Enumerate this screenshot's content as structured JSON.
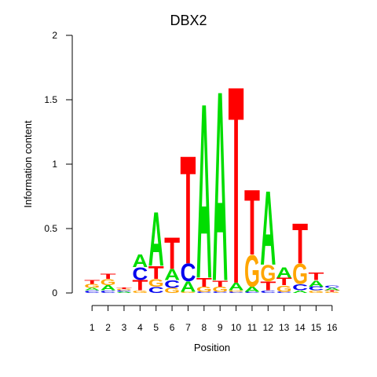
{
  "chart_data": {
    "type": "sequence-logo",
    "title": "DBX2",
    "xlabel": "Position",
    "ylabel": "Information content",
    "ylim": [
      0,
      2
    ],
    "y_ticks": [
      {
        "value": 0,
        "label": "0"
      },
      {
        "value": 0.5,
        "label": "0.5"
      },
      {
        "value": 1,
        "label": "1"
      },
      {
        "value": 1.5,
        "label": "1.5"
      },
      {
        "value": 2,
        "label": "2"
      }
    ],
    "x_ticks": [
      "1",
      "2",
      "3",
      "4",
      "5",
      "6",
      "7",
      "8",
      "9",
      "10",
      "11",
      "12",
      "13",
      "14",
      "15",
      "16"
    ],
    "base_colors": {
      "A": "#00dd00",
      "C": "#0000ee",
      "G": "#ffa500",
      "T": "#ff0000"
    },
    "positions": [
      {
        "pos": 1,
        "letters": [
          [
            "C",
            0.02
          ],
          [
            "A",
            0.02
          ],
          [
            "G",
            0.03
          ],
          [
            "T",
            0.03
          ]
        ]
      },
      {
        "pos": 2,
        "letters": [
          [
            "C",
            0.02
          ],
          [
            "A",
            0.04
          ],
          [
            "G",
            0.05
          ],
          [
            "T",
            0.04
          ]
        ]
      },
      {
        "pos": 3,
        "letters": [
          [
            "A",
            0.01
          ],
          [
            "C",
            0.01
          ],
          [
            "G",
            0.01
          ],
          [
            "T",
            0.01
          ]
        ]
      },
      {
        "pos": 4,
        "letters": [
          [
            "G",
            0.02
          ],
          [
            "T",
            0.08
          ],
          [
            "C",
            0.1
          ],
          [
            "A",
            0.1
          ]
        ]
      },
      {
        "pos": 5,
        "letters": [
          [
            "C",
            0.05
          ],
          [
            "G",
            0.06
          ],
          [
            "T",
            0.1
          ],
          [
            "A",
            0.43
          ]
        ]
      },
      {
        "pos": 6,
        "letters": [
          [
            "G",
            0.04
          ],
          [
            "C",
            0.06
          ],
          [
            "A",
            0.09
          ],
          [
            "T",
            0.25
          ]
        ]
      },
      {
        "pos": 7,
        "letters": [
          [
            "G",
            0.01
          ],
          [
            "A",
            0.08
          ],
          [
            "C",
            0.14
          ],
          [
            "T",
            0.86
          ]
        ]
      },
      {
        "pos": 8,
        "letters": [
          [
            "C",
            0.01
          ],
          [
            "G",
            0.04
          ],
          [
            "T",
            0.07
          ],
          [
            "A",
            1.39
          ]
        ]
      },
      {
        "pos": 9,
        "letters": [
          [
            "C",
            0.01
          ],
          [
            "G",
            0.04
          ],
          [
            "T",
            0.05
          ],
          [
            "A",
            1.51
          ]
        ]
      },
      {
        "pos": 10,
        "letters": [
          [
            "C",
            0.01
          ],
          [
            "G",
            0.01
          ],
          [
            "A",
            0.06
          ],
          [
            "T",
            1.57
          ]
        ]
      },
      {
        "pos": 11,
        "letters": [
          [
            "C",
            0.01
          ],
          [
            "A",
            0.04
          ],
          [
            "G",
            0.25
          ],
          [
            "T",
            0.52
          ]
        ]
      },
      {
        "pos": 12,
        "letters": [
          [
            "C",
            0.02
          ],
          [
            "T",
            0.07
          ],
          [
            "G",
            0.13
          ],
          [
            "A",
            0.59
          ]
        ]
      },
      {
        "pos": 13,
        "letters": [
          [
            "C",
            0.01
          ],
          [
            "G",
            0.05
          ],
          [
            "T",
            0.06
          ],
          [
            "A",
            0.08
          ]
        ]
      },
      {
        "pos": 14,
        "letters": [
          [
            "A",
            0.02
          ],
          [
            "C",
            0.05
          ],
          [
            "G",
            0.16
          ],
          [
            "T",
            0.32
          ]
        ]
      },
      {
        "pos": 15,
        "letters": [
          [
            "G",
            0.02
          ],
          [
            "C",
            0.03
          ],
          [
            "A",
            0.05
          ],
          [
            "T",
            0.06
          ]
        ]
      },
      {
        "pos": 16,
        "letters": [
          [
            "G",
            0.01
          ],
          [
            "T",
            0.01
          ],
          [
            "A",
            0.02
          ],
          [
            "C",
            0.02
          ]
        ]
      }
    ]
  }
}
